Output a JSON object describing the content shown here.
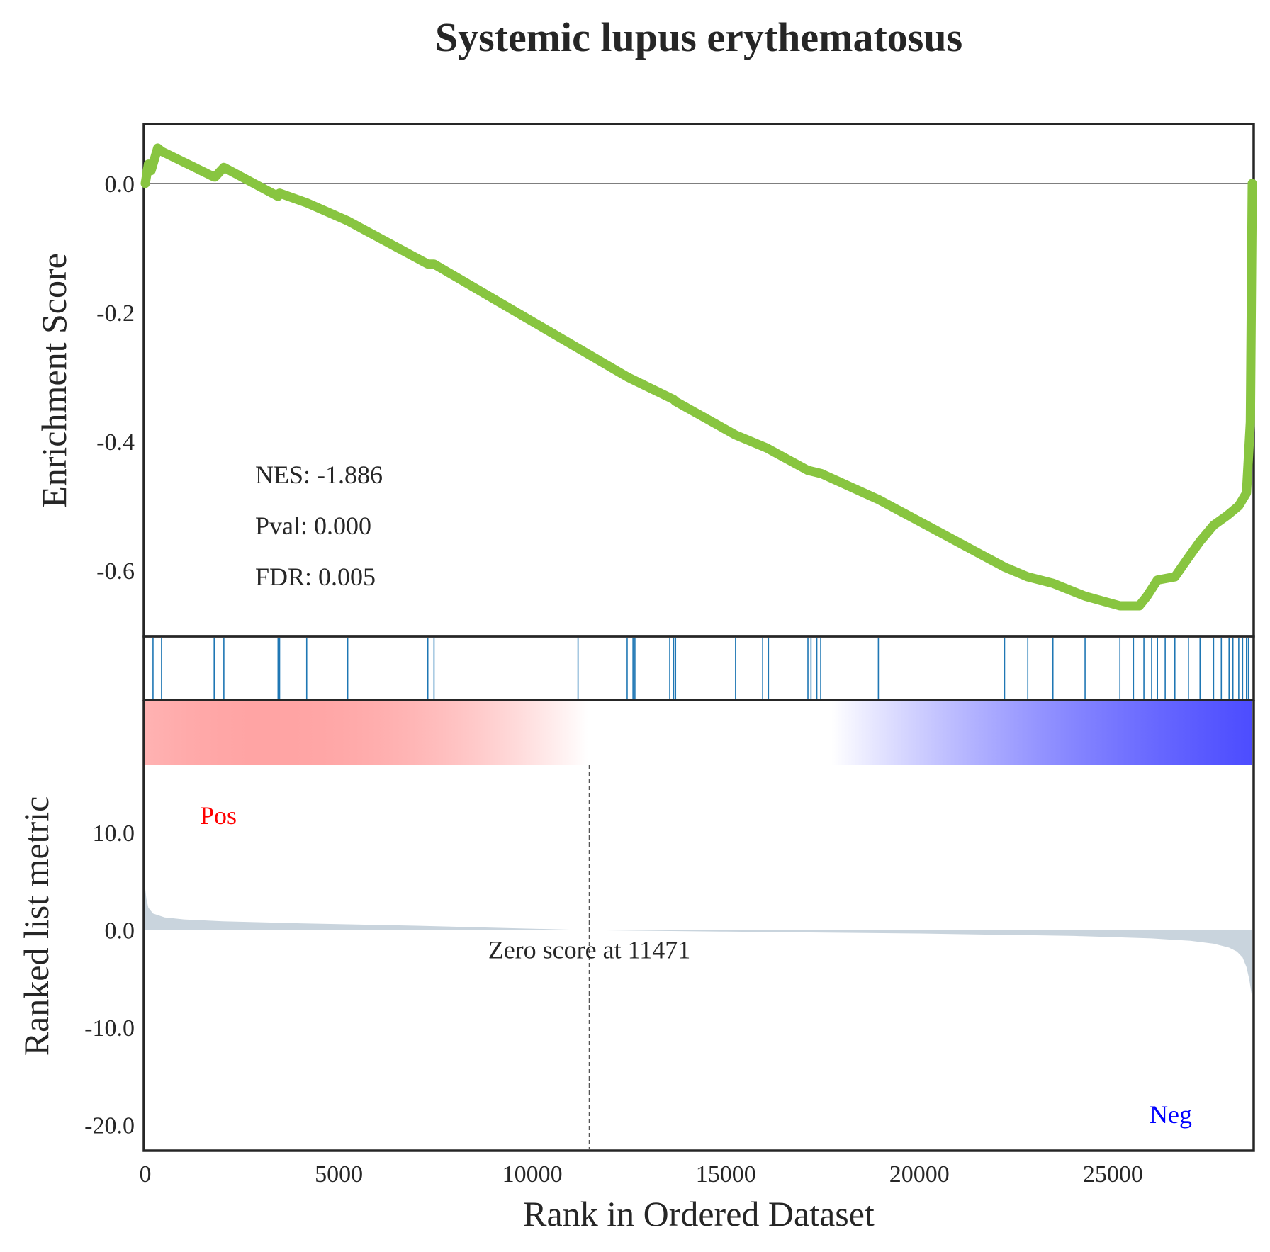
{
  "chart_data": {
    "type": "line",
    "title": "Systemic lupus erythematosus",
    "xlabel": "Rank in Ordered Dataset",
    "xlim": [
      0,
      28600
    ],
    "x_ticks": [
      "0",
      "5000",
      "10000",
      "15000",
      "20000",
      "25000"
    ],
    "panels": {
      "enrichment": {
        "ylabel": "Enrichment Score",
        "ylim": [
          -0.7,
          0.09
        ],
        "y_ticks": [
          "0.0",
          "-0.2",
          "-0.4",
          "-0.6"
        ],
        "y_tick_values": [
          0.0,
          -0.2,
          -0.4,
          -0.6
        ],
        "series": [
          {
            "color": "#88c540",
            "x": [
              0,
              80,
              150,
              320,
              420,
              1780,
              1800,
              2030,
              3430,
              3470,
              4170,
              5230,
              7300,
              7460,
              12450,
              13650,
              13700,
              15250,
              16050,
              17120,
              17470,
              18940,
              22200,
              22800,
              23450,
              24280,
              25180,
              25680,
              25880,
              26150,
              26600,
              26950,
              27250,
              27600,
              27950,
              28250,
              28450,
              28550,
              28600
            ],
            "y": [
              0.0,
              0.03,
              0.02,
              0.055,
              0.05,
              0.01,
              0.01,
              0.025,
              -0.02,
              -0.015,
              -0.03,
              -0.058,
              -0.125,
              -0.125,
              -0.3,
              -0.335,
              -0.338,
              -0.39,
              -0.41,
              -0.445,
              -0.45,
              -0.49,
              -0.595,
              -0.61,
              -0.62,
              -0.64,
              -0.655,
              -0.655,
              -0.64,
              -0.615,
              -0.61,
              -0.58,
              -0.555,
              -0.53,
              -0.515,
              -0.5,
              -0.48,
              -0.37,
              0.0
            ]
          }
        ],
        "annotations": {
          "nes": "NES: -1.886",
          "pval": "Pval: 0.000",
          "fdr": "FDR: 0.005"
        }
      },
      "hits": {
        "color": "#1f77b4",
        "positions": [
          200,
          420,
          1780,
          2030,
          3430,
          3470,
          4170,
          5230,
          7300,
          7460,
          11180,
          12450,
          12600,
          12650,
          13550,
          13650,
          13700,
          15250,
          15950,
          16100,
          17120,
          17200,
          17350,
          17450,
          18940,
          22200,
          22800,
          23450,
          24280,
          25180,
          25530,
          25800,
          26000,
          26150,
          26350,
          26600,
          26950,
          27250,
          27600,
          27800,
          28000,
          28100,
          28250,
          28350,
          28450,
          28500
        ]
      },
      "colorbar": {
        "colors": [
          "#ff0000",
          "#ffffff",
          "#0000ff"
        ]
      },
      "ranked_metric": {
        "ylabel": "Ranked list metric",
        "ylim": [
          -22.5,
          17.0
        ],
        "y_ticks": [
          "10.0",
          "0.0",
          "-10.0",
          "-20.0"
        ],
        "y_tick_values": [
          10.0,
          0.0,
          -10.0,
          -20.0
        ],
        "fill_color": "#c9d4dd",
        "x": [
          0,
          30,
          80,
          200,
          500,
          1000,
          2000,
          4000,
          7000,
          11471,
          15000,
          20000,
          24000,
          26000,
          27000,
          27600,
          28000,
          28200,
          28350,
          28450,
          28520,
          28580,
          28600
        ],
        "y": [
          4.2,
          3.2,
          2.3,
          1.7,
          1.3,
          1.1,
          0.9,
          0.7,
          0.45,
          0.0,
          -0.15,
          -0.35,
          -0.6,
          -0.85,
          -1.1,
          -1.4,
          -1.8,
          -2.2,
          -2.8,
          -3.8,
          -5.0,
          -6.5,
          -7.5
        ],
        "zero_score_rank": 11471,
        "zero_score_label": "Zero score at 11471",
        "pos_label": "Pos",
        "neg_label": "Neg",
        "pos_color": "#ff0000",
        "neg_color": "#0000ff"
      }
    }
  }
}
